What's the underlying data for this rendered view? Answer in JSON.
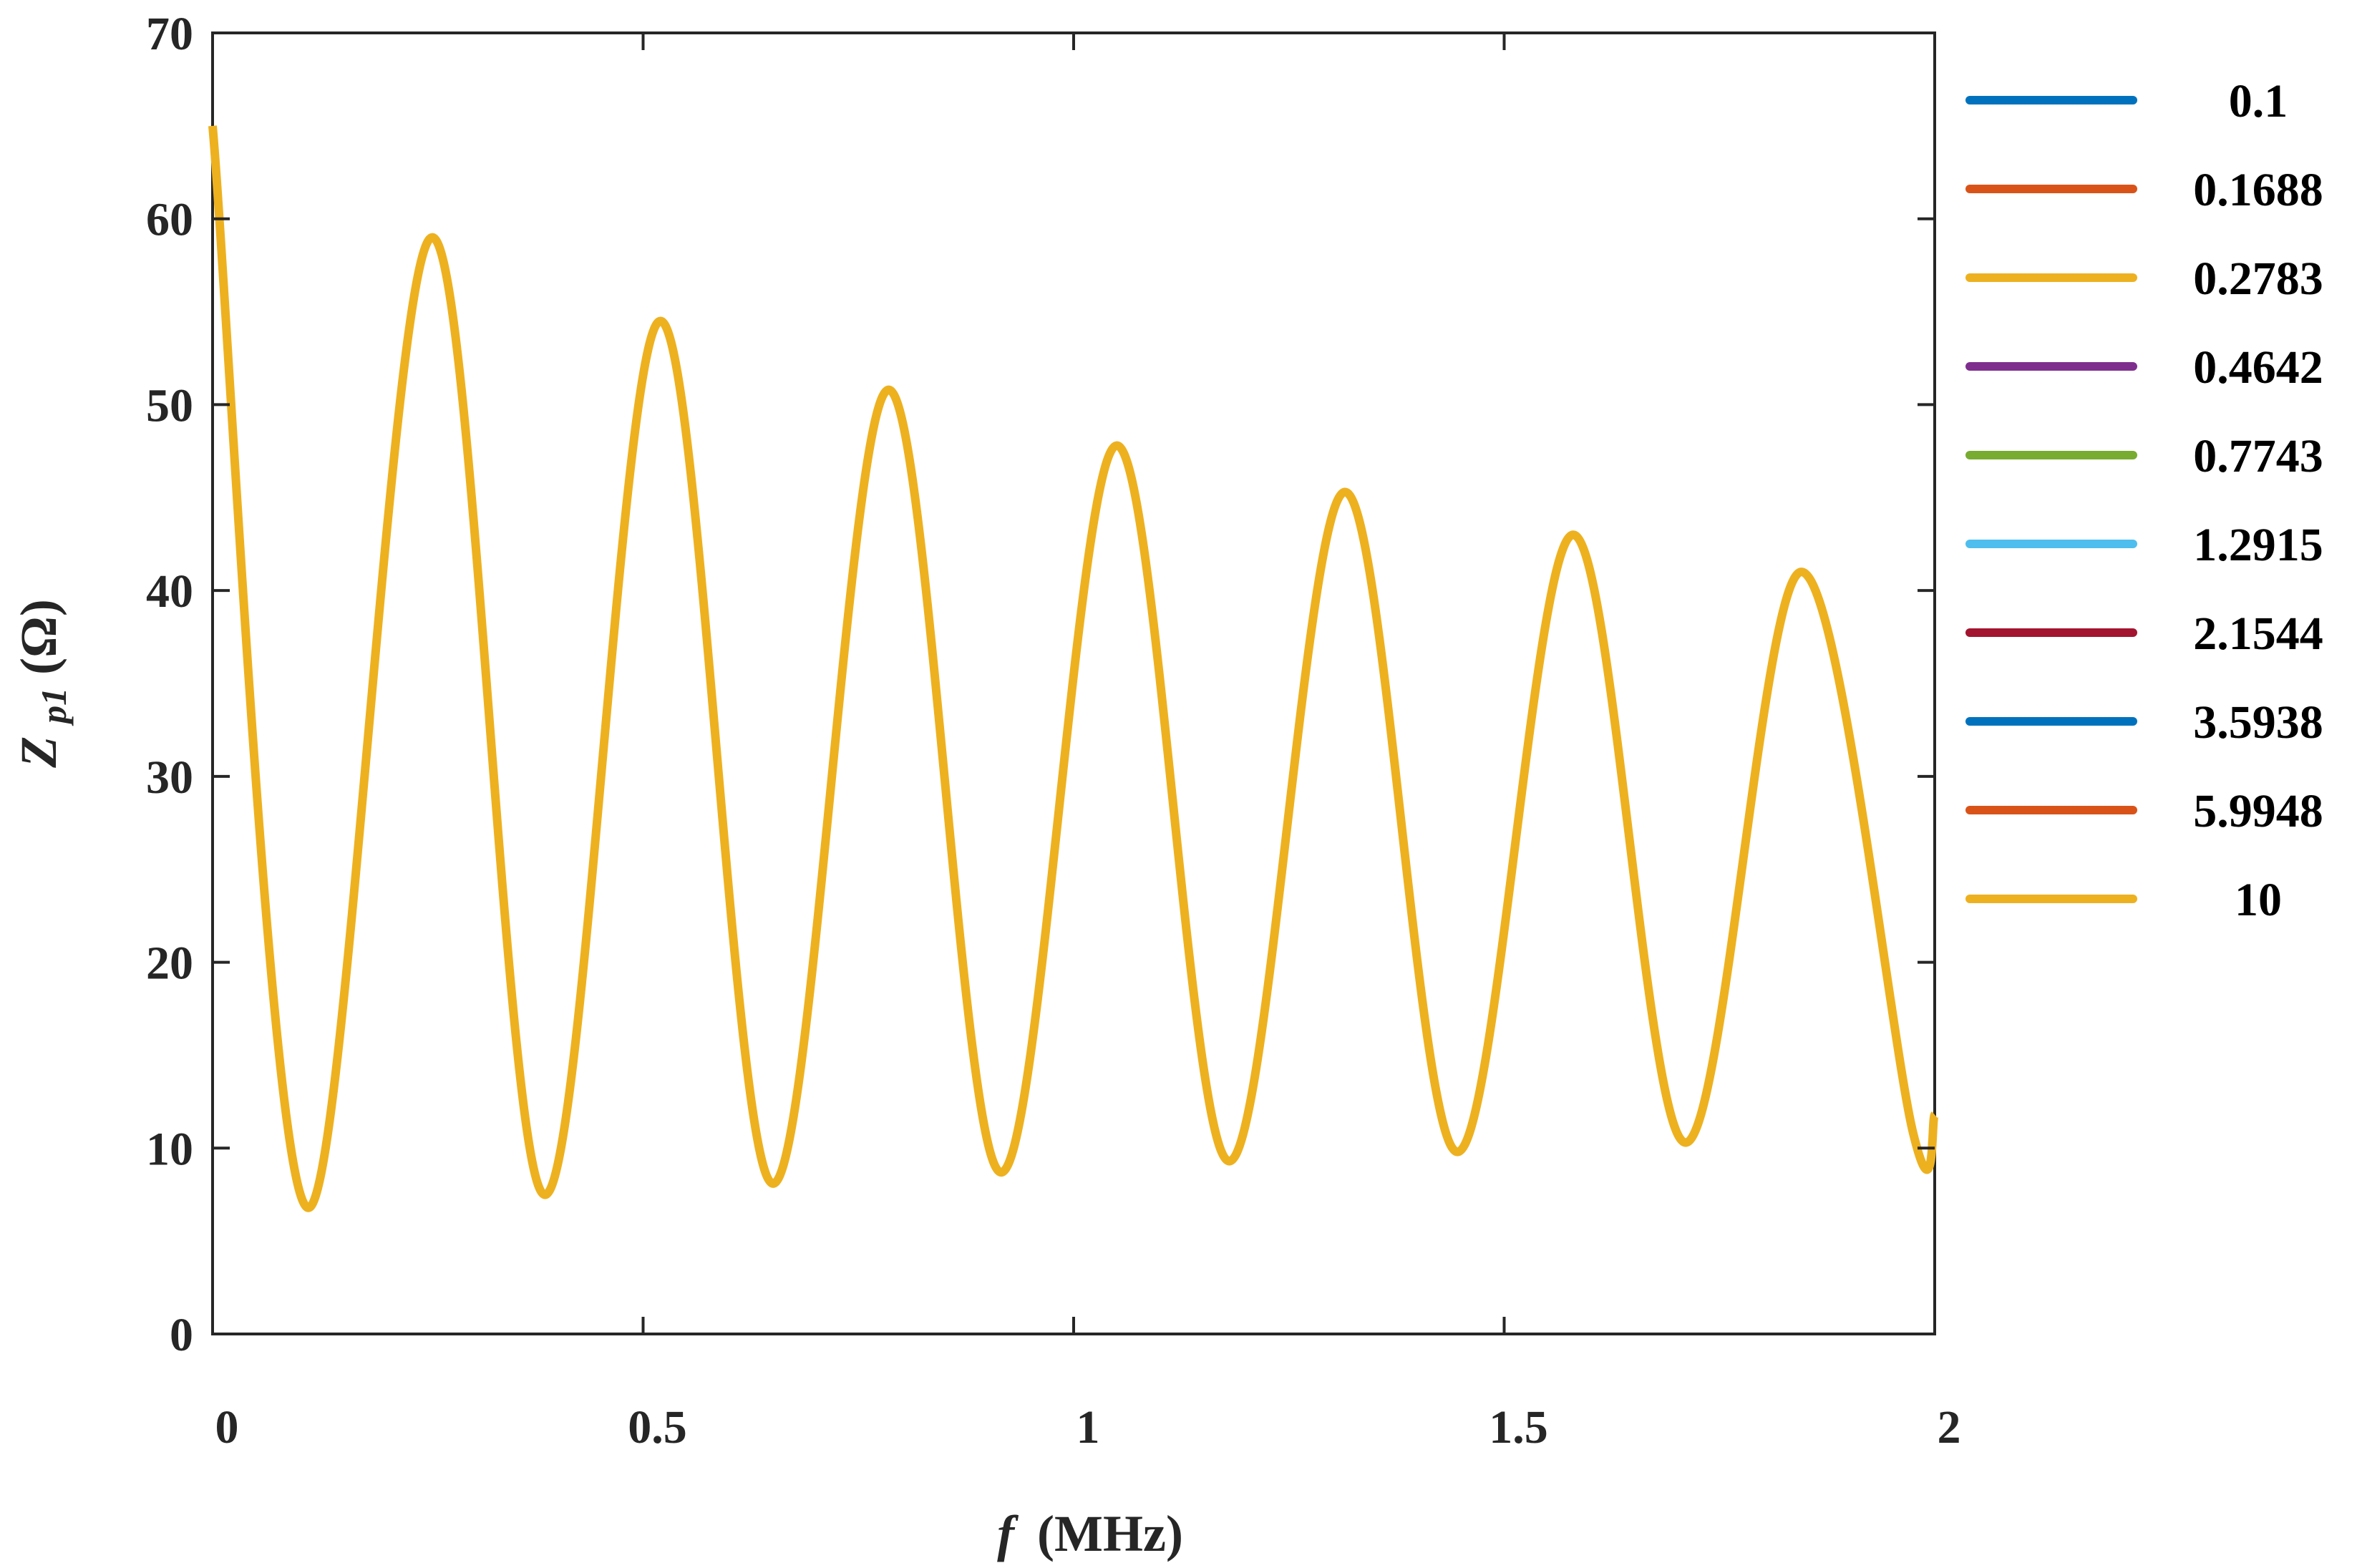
{
  "chart_data": {
    "type": "line",
    "title": "",
    "xlabel": {
      "var": "f",
      "unit": "(MHz)"
    },
    "ylabel": {
      "var": "Z",
      "sub": "p1",
      "unit": "(Ω)"
    },
    "xlim": [
      0,
      2
    ],
    "ylim": [
      0,
      70
    ],
    "xticks": [
      0,
      0.5,
      1,
      1.5,
      2
    ],
    "yticks": [
      0,
      10,
      20,
      30,
      40,
      50,
      60,
      70
    ],
    "xtick_labels": [
      "0",
      "0.5",
      "1",
      "1.5",
      "2"
    ],
    "ytick_labels": [
      "0",
      "10",
      "20",
      "30",
      "40",
      "50",
      "60",
      "70"
    ],
    "grid": false,
    "legend_position": "outside-right",
    "legend": [
      {
        "label": "0.1",
        "color": "#0072BD"
      },
      {
        "label": "0.1688",
        "color": "#D95319"
      },
      {
        "label": "0.2783",
        "color": "#EDB120"
      },
      {
        "label": "0.4642",
        "color": "#7E2F8E"
      },
      {
        "label": "0.7743",
        "color": "#77AC30"
      },
      {
        "label": "1.2915",
        "color": "#4DBEEE"
      },
      {
        "label": "2.1544",
        "color": "#A2142F"
      },
      {
        "label": "3.5938",
        "color": "#0072BD"
      },
      {
        "label": "5.9948",
        "color": "#D95319"
      },
      {
        "label": "10",
        "color": "#EDB120"
      }
    ],
    "curve": {
      "color": "#EDB120",
      "note": "all ten series coincide; only the last-drawn series is visible",
      "points": [
        [
          0.0,
          65.0
        ],
        [
          0.11,
          6.8
        ],
        [
          0.255,
          59.0
        ],
        [
          0.385,
          7.5
        ],
        [
          0.52,
          54.5
        ],
        [
          0.65,
          8.1
        ],
        [
          0.785,
          50.8
        ],
        [
          0.915,
          8.7
        ],
        [
          1.05,
          47.8
        ],
        [
          1.18,
          9.3
        ],
        [
          1.315,
          45.3
        ],
        [
          1.445,
          9.8
        ],
        [
          1.58,
          43.0
        ],
        [
          1.71,
          10.3
        ],
        [
          1.845,
          41.0
        ],
        [
          1.975,
          10.8
        ],
        [
          2.0,
          11.8
        ]
      ]
    }
  }
}
